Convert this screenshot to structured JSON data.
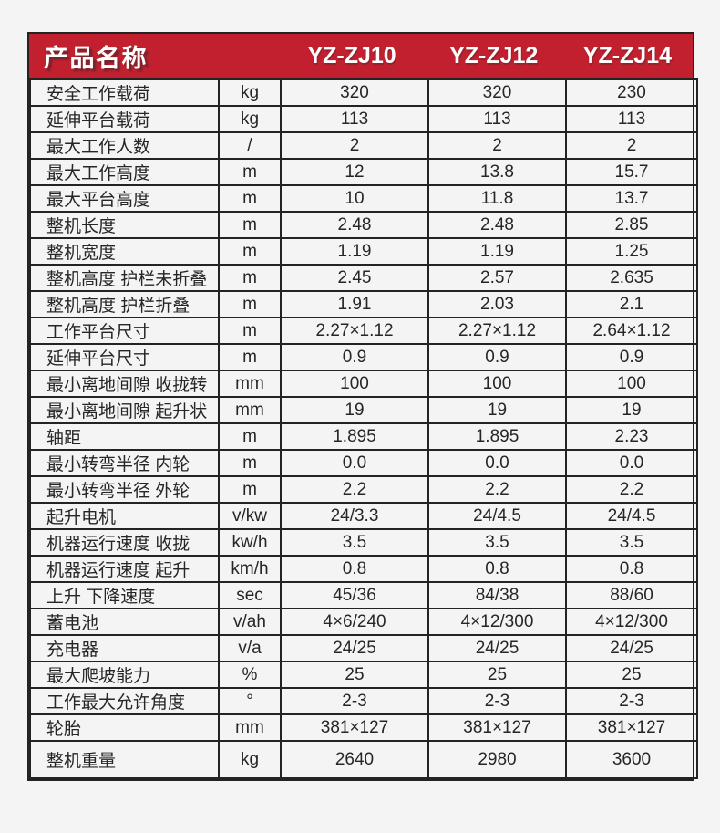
{
  "header": {
    "title": "产品名称",
    "models": [
      "YZ-ZJ10",
      "YZ-ZJ12",
      "YZ-ZJ14"
    ]
  },
  "colors": {
    "header_bg": "#c3202f",
    "header_text": "#ffffff",
    "border": "#232323",
    "cell_bg": "#f4f4f5",
    "body_text": "#262626"
  },
  "table": {
    "rows": [
      {
        "label": "安全工作载荷",
        "unit": "kg",
        "values": [
          "320",
          "320",
          "230"
        ]
      },
      {
        "label": "延伸平台载荷",
        "unit": "kg",
        "values": [
          "113",
          "113",
          "113"
        ]
      },
      {
        "label": "最大工作人数",
        "unit": "/",
        "values": [
          "2",
          "2",
          "2"
        ]
      },
      {
        "label": "最大工作高度",
        "unit": "m",
        "values": [
          "12",
          "13.8",
          "15.7"
        ]
      },
      {
        "label": "最大平台高度",
        "unit": "m",
        "values": [
          "10",
          "11.8",
          "13.7"
        ]
      },
      {
        "label": "整机长度",
        "unit": "m",
        "values": [
          "2.48",
          "2.48",
          "2.85"
        ]
      },
      {
        "label": "整机宽度",
        "unit": "m",
        "values": [
          "1.19",
          "1.19",
          "1.25"
        ]
      },
      {
        "label": "整机高度 护栏未折叠",
        "unit": "m",
        "values": [
          "2.45",
          "2.57",
          "2.635"
        ]
      },
      {
        "label": "整机高度 护栏折叠",
        "unit": "m",
        "values": [
          "1.91",
          "2.03",
          "2.1"
        ]
      },
      {
        "label": "工作平台尺寸",
        "unit": "m",
        "values": [
          "2.27×1.12",
          "2.27×1.12",
          "2.64×1.12"
        ]
      },
      {
        "label": "延伸平台尺寸",
        "unit": "m",
        "values": [
          "0.9",
          "0.9",
          "0.9"
        ]
      },
      {
        "label": "最小离地间隙 收拢转",
        "unit": "mm",
        "values": [
          "100",
          "100",
          "100"
        ]
      },
      {
        "label": "最小离地间隙 起升状",
        "unit": "mm",
        "values": [
          "19",
          "19",
          "19"
        ]
      },
      {
        "label": "轴距",
        "unit": "m",
        "values": [
          "1.895",
          "1.895",
          "2.23"
        ]
      },
      {
        "label": "最小转弯半径 内轮",
        "unit": "m",
        "values": [
          "0.0",
          "0.0",
          "0.0"
        ]
      },
      {
        "label": "最小转弯半径 外轮",
        "unit": "m",
        "values": [
          "2.2",
          "2.2",
          "2.2"
        ]
      },
      {
        "label": "起升电机",
        "unit": "v/kw",
        "values": [
          "24/3.3",
          "24/4.5",
          "24/4.5"
        ]
      },
      {
        "label": "机器运行速度 收拢",
        "unit": "kw/h",
        "values": [
          "3.5",
          "3.5",
          "3.5"
        ]
      },
      {
        "label": "机器运行速度 起升",
        "unit": "km/h",
        "values": [
          "0.8",
          "0.8",
          "0.8"
        ]
      },
      {
        "label": "上升 下降速度",
        "unit": "sec",
        "values": [
          "45/36",
          "84/38",
          "88/60"
        ]
      },
      {
        "label": "蓄电池",
        "unit": "v/ah",
        "values": [
          "4×6/240",
          "4×12/300",
          "4×12/300"
        ]
      },
      {
        "label": "充电器",
        "unit": "v/a",
        "values": [
          "24/25",
          "24/25",
          "24/25"
        ]
      },
      {
        "label": "最大爬坡能力",
        "unit": "%",
        "values": [
          "25",
          "25",
          "25"
        ]
      },
      {
        "label": "工作最大允许角度",
        "unit": "°",
        "values": [
          "2-3",
          "2-3",
          "2-3"
        ]
      },
      {
        "label": "轮胎",
        "unit": "mm",
        "values": [
          "381×127",
          "381×127",
          "381×127"
        ]
      },
      {
        "label": "整机重量",
        "unit": "kg",
        "values": [
          "2640",
          "2980",
          "3600"
        ]
      }
    ]
  }
}
